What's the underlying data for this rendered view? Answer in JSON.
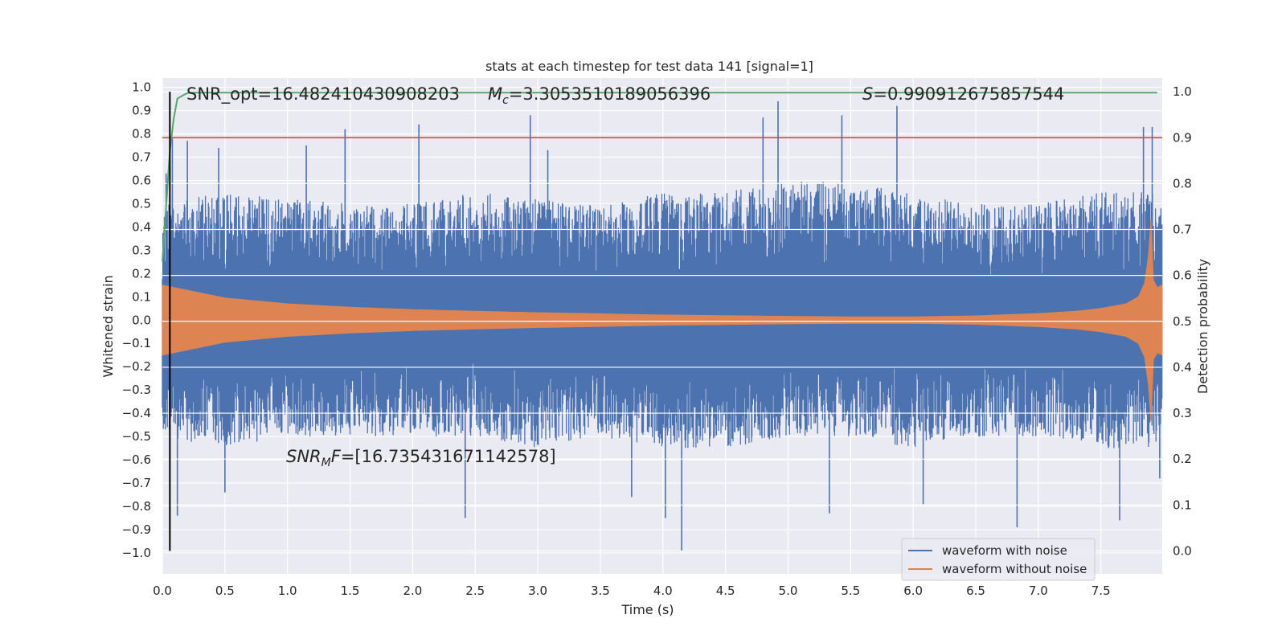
{
  "chart_data": {
    "type": "line",
    "title": "stats at each timestep for test data 141 [signal=1]",
    "xlabel": "Time (s)",
    "ylabel": "Whitened strain",
    "ylabel_right": "Detection probability",
    "xlim": [
      0.0,
      7.99
    ],
    "ylim": [
      -1.09,
      1.04
    ],
    "ylim_right": [
      -0.05,
      1.03
    ],
    "x_ticks": [
      "0.0",
      "0.5",
      "1.0",
      "1.5",
      "2.0",
      "2.5",
      "3.0",
      "3.5",
      "4.0",
      "4.5",
      "5.0",
      "5.5",
      "6.0",
      "6.5",
      "7.0",
      "7.5"
    ],
    "y_ticks": [
      "1.0",
      "0.9",
      "0.8",
      "0.7",
      "0.6",
      "0.5",
      "0.4",
      "0.3",
      "0.2",
      "0.1",
      "0.0",
      "−0.1",
      "−0.2",
      "−0.3",
      "−0.4",
      "−0.5",
      "−0.6",
      "−0.7",
      "−0.8",
      "−0.9",
      "−1.0"
    ],
    "y_ticks_right": [
      "1.0",
      "0.9",
      "0.8",
      "0.7",
      "0.6",
      "0.5",
      "0.4",
      "0.3",
      "0.2",
      "0.1",
      "0.0"
    ],
    "annotations": {
      "snr_opt": "SNR_opt=16.482410430908203",
      "mc_symbol": "M",
      "mc_sub": "c",
      "mc_value": "=3.3053510189056396",
      "s_symbol": "S",
      "s_value": "=0.990912675857544",
      "snrmf_symbol": "SNR",
      "snrmf_sub": "M",
      "snrmf_f": "F",
      "snrmf_value": "=[16.735431671142578]"
    },
    "series": [
      {
        "name": "waveform with noise",
        "color": "#4c72b0",
        "envelope_upper_x": [
          0.0,
          0.5,
          1.0,
          1.5,
          2.0,
          2.5,
          3.0,
          3.5,
          4.0,
          4.5,
          5.0,
          5.5,
          6.0,
          6.5,
          7.0,
          7.5,
          7.9,
          7.99
        ],
        "envelope_upper_y": [
          0.5,
          0.55,
          0.52,
          0.5,
          0.5,
          0.55,
          0.52,
          0.5,
          0.55,
          0.55,
          0.6,
          0.6,
          0.55,
          0.5,
          0.5,
          0.55,
          0.55,
          0.5
        ],
        "envelope_lower_y": [
          -0.5,
          -0.55,
          -0.5,
          -0.5,
          -0.5,
          -0.5,
          -0.55,
          -0.5,
          -0.55,
          -0.55,
          -0.5,
          -0.5,
          -0.55,
          -0.5,
          -0.5,
          -0.55,
          -0.55,
          -0.5
        ],
        "spikes": [
          [
            0.03,
            0.63
          ],
          [
            0.08,
            0.78
          ],
          [
            0.2,
            0.77
          ],
          [
            0.45,
            0.74
          ],
          [
            1.15,
            0.75
          ],
          [
            1.46,
            0.82
          ],
          [
            2.05,
            0.84
          ],
          [
            2.94,
            0.88
          ],
          [
            3.08,
            0.73
          ],
          [
            4.8,
            0.87
          ],
          [
            4.92,
            0.94
          ],
          [
            5.43,
            0.88
          ],
          [
            5.87,
            0.92
          ],
          [
            7.84,
            0.83
          ],
          [
            7.91,
            0.83
          ],
          [
            0.12,
            -0.84
          ],
          [
            0.5,
            -0.74
          ],
          [
            2.42,
            -0.85
          ],
          [
            3.75,
            -0.76
          ],
          [
            4.02,
            -0.85
          ],
          [
            4.15,
            -0.99
          ],
          [
            5.33,
            -0.83
          ],
          [
            6.08,
            -0.79
          ],
          [
            6.83,
            -0.89
          ],
          [
            7.65,
            -0.86
          ],
          [
            7.97,
            -0.68
          ]
        ]
      },
      {
        "name": "waveform without noise",
        "color": "#dd8452",
        "envelope_x": [
          0.0,
          0.5,
          1.0,
          1.5,
          2.0,
          2.5,
          3.0,
          3.5,
          4.0,
          4.5,
          5.0,
          5.5,
          6.0,
          6.5,
          7.0,
          7.3,
          7.5,
          7.7,
          7.8,
          7.85,
          7.88,
          7.9,
          7.92,
          7.95,
          7.99
        ],
        "envelope_y": [
          0.15,
          0.095,
          0.07,
          0.055,
          0.045,
          0.038,
          0.032,
          0.027,
          0.022,
          0.019,
          0.016,
          0.014,
          0.014,
          0.018,
          0.028,
          0.038,
          0.05,
          0.07,
          0.1,
          0.16,
          0.28,
          0.43,
          0.17,
          0.14,
          0.15
        ]
      },
      {
        "name": "detection probability",
        "color": "#55a868",
        "axis": "right",
        "x": [
          0.0,
          0.03,
          0.06,
          0.09,
          0.12,
          0.17,
          0.2,
          0.25,
          0.35,
          0.5,
          7.95
        ],
        "y": [
          0.63,
          0.75,
          0.87,
          0.94,
          0.985,
          0.993,
          0.997,
          0.998,
          0.998,
          0.998,
          0.998
        ]
      }
    ],
    "threshold": {
      "value": 0.9,
      "axis": "right",
      "color": "#c44e52"
    },
    "vline": {
      "x": 0.06,
      "color": "#000000"
    },
    "grid": true,
    "legend": {
      "placement": "lower-right",
      "entries": [
        {
          "label": "waveform with noise",
          "color": "#4c72b0"
        },
        {
          "label": "waveform without noise",
          "color": "#dd8452"
        }
      ]
    },
    "background": "#eaeaf2"
  }
}
